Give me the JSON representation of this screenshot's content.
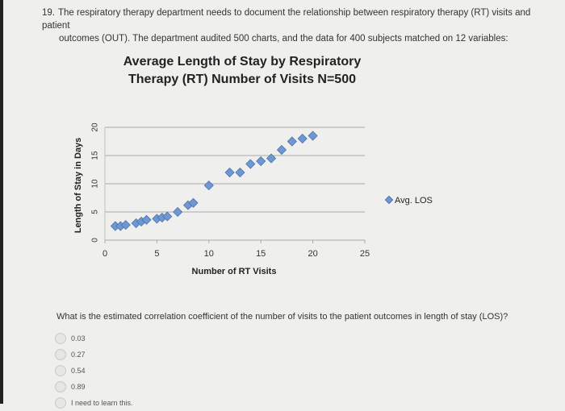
{
  "question": {
    "number": "19.",
    "line1": "The respiratory therapy department needs to document the relationship between respiratory therapy (RT) visits and patient",
    "line2": "outcomes (OUT). The department audited 500 charts, and the data for 400 subjects matched on 12 variables:"
  },
  "chart_data": {
    "type": "scatter",
    "title": "Average Length of Stay by Respiratory Therapy (RT) Number of Visits N=500",
    "title_lines": [
      "Average Length of Stay by Respiratory",
      "Therapy (RT) Number of Visits N=500"
    ],
    "xlabel": "Number of RT Visits",
    "ylabel": "Length of Stay in Days",
    "xlim": [
      0,
      25
    ],
    "ylim": [
      0,
      20
    ],
    "xticks": [
      0,
      5,
      10,
      15,
      20,
      25
    ],
    "yticks": [
      0,
      5,
      10,
      15,
      20
    ],
    "grid": "horizontal",
    "legend_position": "right",
    "marker_color": "#6f97d1",
    "series": [
      {
        "name": "Avg. LOS",
        "x": [
          1,
          1.5,
          2,
          3,
          3.5,
          4,
          5,
          5.5,
          6,
          7,
          8,
          8.5,
          10,
          12,
          13,
          14,
          15,
          16,
          17,
          18,
          19,
          20
        ],
        "y": [
          2.5,
          2.5,
          2.7,
          3,
          3.3,
          3.6,
          3.8,
          4,
          4.2,
          5,
          6.2,
          6.6,
          9.7,
          12,
          12,
          13.5,
          14,
          14.5,
          16,
          17.5,
          18,
          18.5
        ]
      }
    ]
  },
  "prompt": "What is the estimated correlation coefficient of the number of visits to the patient outcomes in length of stay (LOS)?",
  "options": [
    {
      "label": "0.03"
    },
    {
      "label": "0.27"
    },
    {
      "label": "0.54"
    },
    {
      "label": "0.89"
    },
    {
      "label": "I need to learn this."
    }
  ]
}
